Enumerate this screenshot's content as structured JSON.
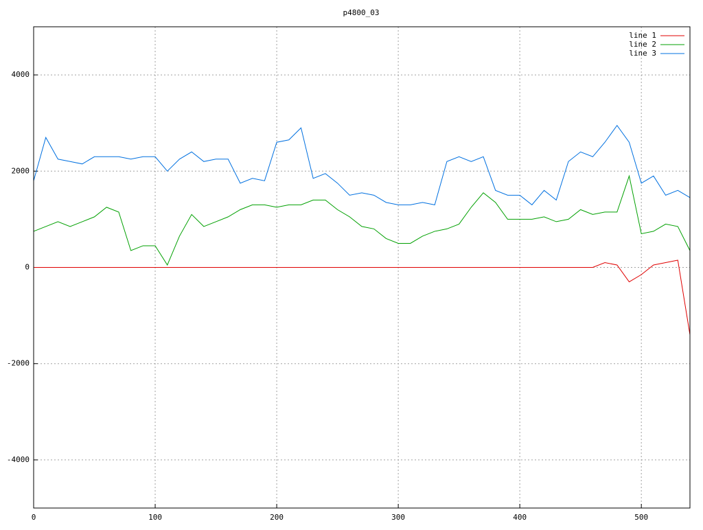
{
  "chart_data": {
    "type": "line",
    "title": "p4800_03",
    "x": [
      0,
      10,
      20,
      30,
      40,
      50,
      60,
      70,
      80,
      90,
      100,
      110,
      120,
      130,
      140,
      150,
      160,
      170,
      180,
      190,
      200,
      210,
      220,
      230,
      240,
      250,
      260,
      270,
      280,
      290,
      300,
      310,
      320,
      330,
      340,
      350,
      360,
      370,
      380,
      390,
      400,
      410,
      420,
      430,
      440,
      450,
      460,
      470,
      480,
      490,
      500,
      510,
      520,
      530,
      540
    ],
    "series": [
      {
        "name": "line 1",
        "color": "#e00000",
        "values": [
          0,
          0,
          0,
          0,
          0,
          0,
          0,
          0,
          0,
          0,
          0,
          0,
          0,
          0,
          0,
          0,
          0,
          0,
          0,
          0,
          0,
          0,
          0,
          0,
          0,
          0,
          0,
          0,
          0,
          0,
          0,
          0,
          0,
          0,
          0,
          0,
          0,
          0,
          0,
          0,
          0,
          0,
          0,
          0,
          0,
          0,
          0,
          100,
          50,
          -300,
          -150,
          50,
          100,
          150,
          -1400
        ]
      },
      {
        "name": "line 2",
        "color": "#00a000",
        "values": [
          750,
          850,
          950,
          850,
          950,
          1050,
          1250,
          1150,
          350,
          450,
          450,
          50,
          650,
          1100,
          850,
          950,
          1050,
          1200,
          1300,
          1300,
          1250,
          1300,
          1300,
          1400,
          1400,
          1200,
          1050,
          850,
          800,
          600,
          500,
          500,
          650,
          750,
          800,
          900,
          1250,
          1550,
          1350,
          1000,
          1000,
          1000,
          1050,
          950,
          1000,
          1200,
          1100,
          1150,
          1150,
          1900,
          700,
          750,
          900,
          850,
          350
        ]
      },
      {
        "name": "line 3",
        "color": "#0070e0",
        "values": [
          1800,
          2700,
          2250,
          2200,
          2150,
          2300,
          2300,
          2300,
          2250,
          2300,
          2300,
          2000,
          2250,
          2400,
          2200,
          2250,
          2250,
          1750,
          1850,
          1800,
          2600,
          2650,
          2900,
          1850,
          1950,
          1750,
          1500,
          1550,
          1500,
          1350,
          1300,
          1300,
          1350,
          1300,
          2200,
          2300,
          2200,
          2300,
          1600,
          1500,
          1500,
          1300,
          1600,
          1400,
          2200,
          2400,
          2300,
          2600,
          2950,
          2600,
          1750,
          1900,
          1500,
          1600,
          1450
        ]
      }
    ],
    "xlim": [
      0,
      540
    ],
    "ylim": [
      -5000,
      5000
    ],
    "xticks": [
      0,
      100,
      200,
      300,
      400,
      500
    ],
    "yticks": [
      -4000,
      -2000,
      0,
      2000,
      4000
    ],
    "grid": true,
    "legend": "top-right"
  }
}
